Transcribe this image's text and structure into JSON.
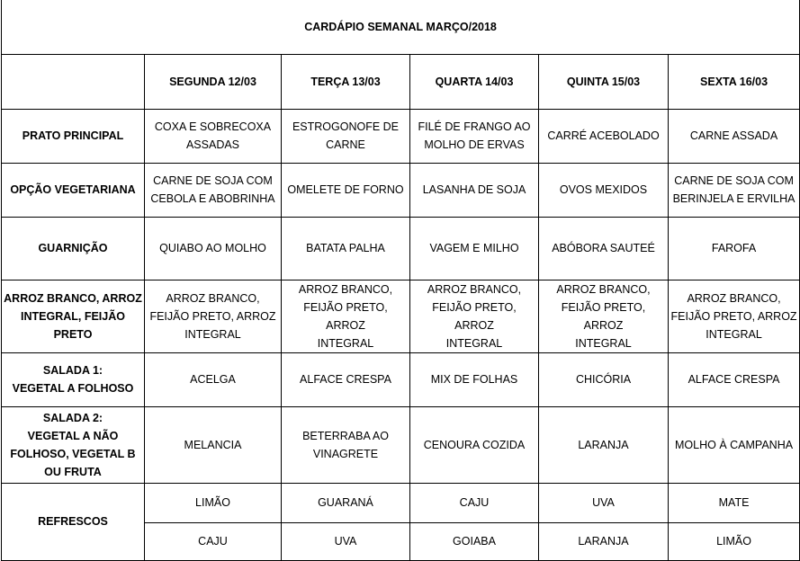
{
  "title": "CARDÁPIO SEMANAL MARÇO/2018",
  "days": [
    "SEGUNDA 12/03",
    "TERÇA 13/03",
    "QUARTA 14/03",
    "QUINTA 15/03",
    "SEXTA 16/03"
  ],
  "rows": [
    {
      "label": "PRATO PRINCIPAL",
      "cells": [
        "COXA E SOBRECOXA\nASSADAS",
        "ESTROGONOFE DE\nCARNE",
        "FILÉ DE FRANGO AO\nMOLHO DE ERVAS",
        "CARRÉ ACEBOLADO",
        "CARNE ASSADA"
      ]
    },
    {
      "label": "OPÇÃO VEGETARIANA",
      "cells": [
        "CARNE DE SOJA COM\nCEBOLA E ABOBRINHA",
        "OMELETE DE FORNO",
        "LASANHA DE SOJA",
        "OVOS MEXIDOS",
        "CARNE DE SOJA COM\nBERINJELA E ERVILHA"
      ]
    },
    {
      "label": "GUARNIÇÃO",
      "cells": [
        "QUIABO AO MOLHO",
        "BATATA PALHA",
        "VAGEM E MILHO",
        "ABÓBORA SAUTEÉ",
        "FAROFA"
      ]
    },
    {
      "label": "ARROZ BRANCO, ARROZ\nINTEGRAL, FEIJÃO PRETO",
      "cells": [
        "ARROZ BRANCO,\nFEIJÃO PRETO, ARROZ\nINTEGRAL",
        "ARROZ BRANCO,\nFEIJÃO PRETO, ARROZ\nINTEGRAL",
        "ARROZ BRANCO,\nFEIJÃO PRETO, ARROZ\nINTEGRAL",
        "ARROZ BRANCO,\nFEIJÃO PRETO, ARROZ\nINTEGRAL",
        "ARROZ BRANCO,\nFEIJÃO PRETO, ARROZ\nINTEGRAL"
      ]
    },
    {
      "label": "SALADA 1:\nVEGETAL A FOLHOSO",
      "cells": [
        "ACELGA",
        "ALFACE CRESPA",
        "MIX DE FOLHAS",
        "CHICÓRIA",
        "ALFACE CRESPA"
      ]
    },
    {
      "label": "SALADA 2:\nVEGETAL A NÃO\nFOLHOSO, VEGETAL B\nOU FRUTA",
      "cells": [
        "MELANCIA",
        "BETERRABA AO\nVINAGRETE",
        "CENOURA COZIDA",
        "LARANJA",
        "MOLHO À CAMPANHA"
      ]
    }
  ],
  "refrescos": {
    "label": "REFRESCOS",
    "rows": [
      [
        "LIMÃO",
        "GUARANÁ",
        "CAJU",
        "UVA",
        "MATE"
      ],
      [
        "CAJU",
        "UVA",
        "GOIABA",
        "LARANJA",
        "LIMÃO"
      ]
    ]
  }
}
